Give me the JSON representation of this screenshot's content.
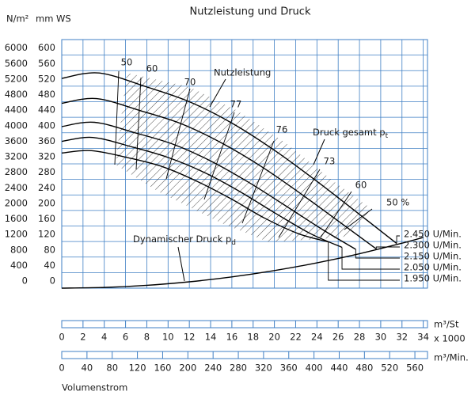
{
  "chart_data": {
    "type": "line",
    "title": "Nutzleistung und Druck",
    "y_label": "mm WS",
    "y2_label": "N/m²",
    "ylim": [
      0,
      640
    ],
    "yticks": [
      0,
      40,
      80,
      120,
      160,
      200,
      240,
      280,
      320,
      360,
      400,
      440,
      480,
      520,
      560,
      600
    ],
    "y2lim": [
      0,
      6400
    ],
    "y2ticks": [
      0,
      400,
      800,
      1200,
      1600,
      2000,
      2400,
      2800,
      3200,
      3600,
      4000,
      4400,
      4800,
      5200,
      5600,
      6000
    ],
    "x_label": "m³/St",
    "x_multiplier": "x 1000",
    "xlim": [
      0,
      34.4
    ],
    "xticks": [
      0,
      2,
      4,
      6,
      8,
      10,
      12,
      14,
      16,
      18,
      20,
      22,
      24,
      26,
      28,
      30,
      32,
      34
    ],
    "x2_label": "m³/Min.",
    "x2lim": [
      0,
      580
    ],
    "x2ticks": [
      0,
      40,
      80,
      120,
      160,
      200,
      240,
      280,
      320,
      360,
      400,
      440,
      480,
      520,
      560
    ],
    "footer_label": "Volumenstrom",
    "grid": true,
    "grid_color": "#3f7fc4",
    "series": [
      {
        "name": "2.450 U/Min.",
        "color": "#000000",
        "x": [
          0,
          3.5,
          8,
          12,
          16,
          20,
          24,
          28,
          31.5
        ],
        "values": [
          540,
          554,
          518,
          480,
          425,
          355,
          275,
          190,
          115
        ]
      },
      {
        "name": "2.300 U/Min.",
        "color": "#000000",
        "x": [
          0,
          3.29,
          7.51,
          11.27,
          15.02,
          18.78,
          22.54,
          26.29,
          29.58
        ],
        "values": [
          476,
          488,
          456,
          423,
          374,
          313,
          242,
          167,
          101
        ]
      },
      {
        "name": "2.150 U/Min.",
        "color": "#000000",
        "x": [
          0,
          3.07,
          7.02,
          10.53,
          14.04,
          17.55,
          21.06,
          24.57,
          27.65
        ],
        "values": [
          416,
          427,
          399,
          370,
          327,
          273,
          212,
          150,
          100
        ]
      },
      {
        "name": "2.050 U/Min.",
        "color": "#000000",
        "x": [
          0,
          2.93,
          6.69,
          10.04,
          13.39,
          16.73,
          20.08,
          23.42,
          26.36
        ],
        "values": [
          378,
          388,
          363,
          336,
          298,
          249,
          193,
          140,
          105
        ]
      },
      {
        "name": "1.950 U/Min.",
        "color": "#000000",
        "x": [
          0,
          2.79,
          6.37,
          9.55,
          12.73,
          15.92,
          19.1,
          22.28,
          25.07
        ],
        "values": [
          348,
          354,
          335,
          312,
          275,
          230,
          180,
          140,
          119
        ]
      }
    ],
    "dynamic_pressure": {
      "color": "#000000",
      "x": [
        0,
        4,
        8,
        12,
        16,
        20,
        24,
        28,
        32,
        34
      ],
      "values": [
        0,
        1.8,
        7.2,
        16.3,
        28.9,
        45.2,
        65.1,
        88.6,
        115.7,
        130.6
      ]
    },
    "annotations": {
      "power": "Nutzleistung",
      "total_pressure": {
        "text": "Druck gesamt p",
        "sub": "t"
      },
      "dynamic_pressure": {
        "text": "Dynamischer Druck p",
        "sub": "d"
      }
    },
    "efficiency_labels": [
      "50",
      "60",
      "70",
      "77",
      "76",
      "73",
      "60",
      "50 %"
    ]
  }
}
